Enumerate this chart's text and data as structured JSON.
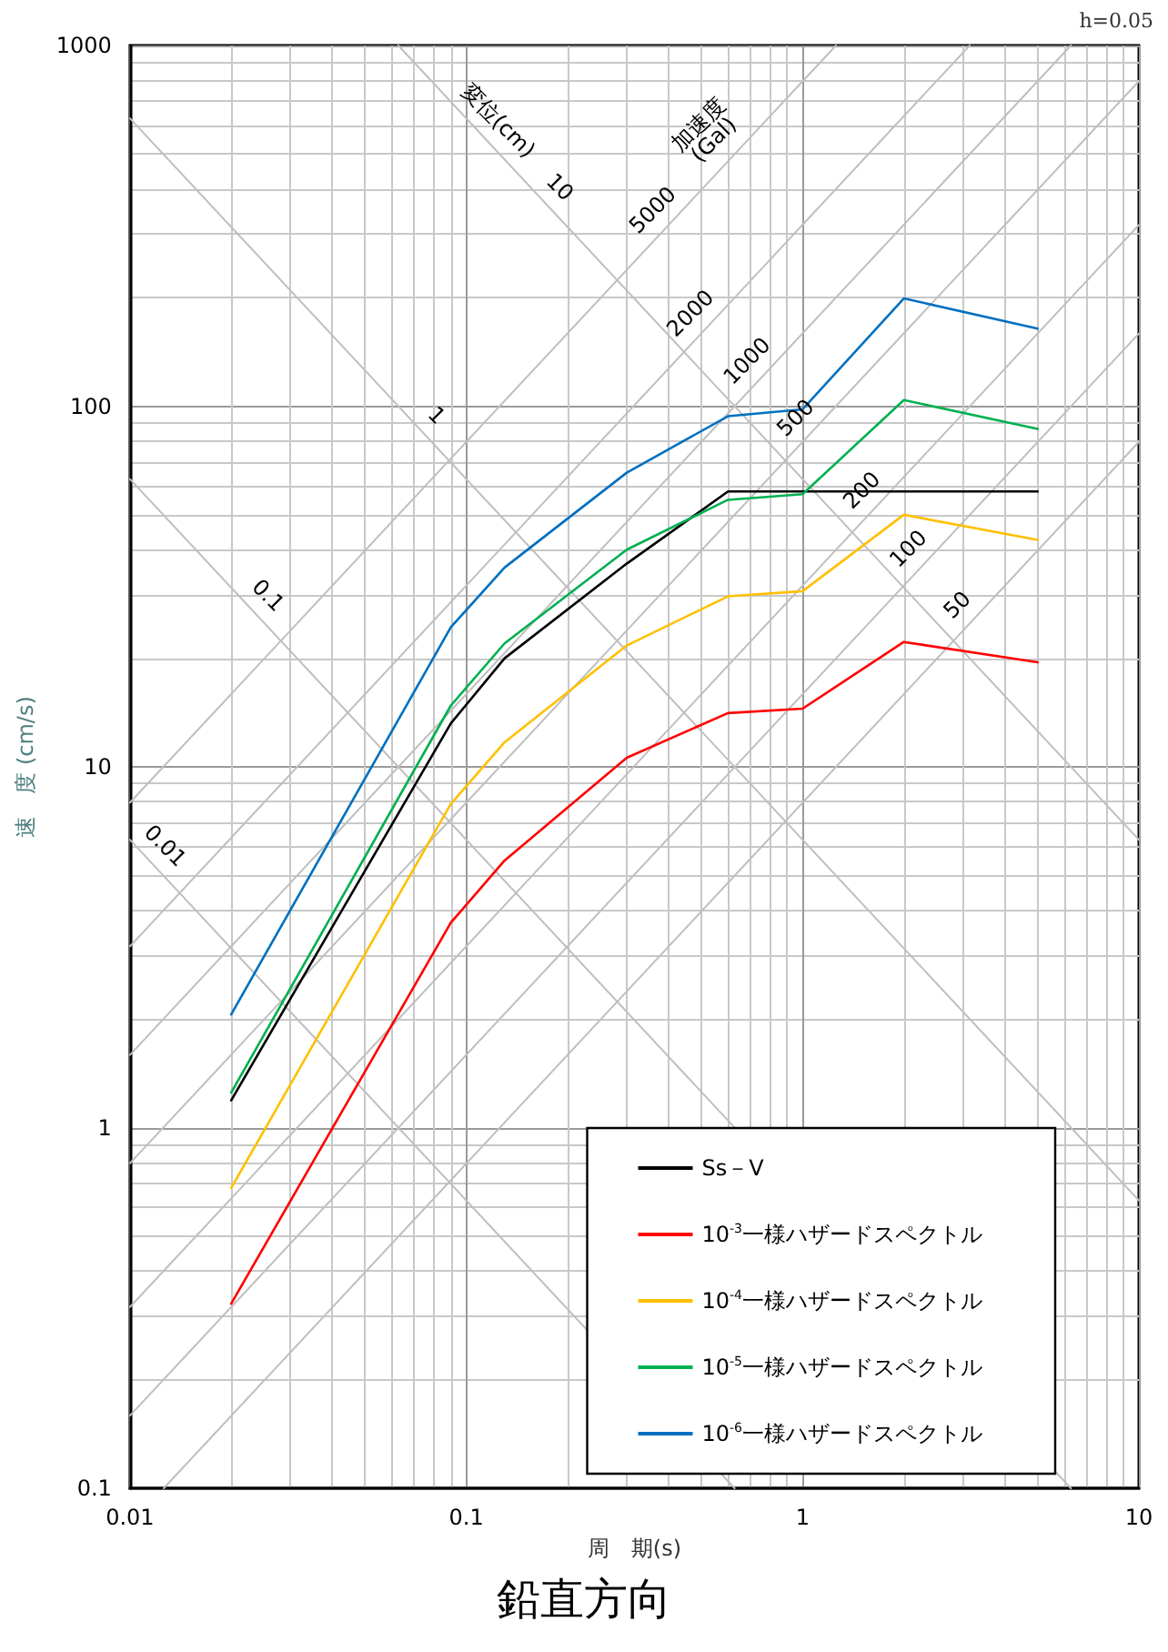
{
  "chart_data": {
    "type": "line",
    "title": "鉛直方向",
    "xlabel": "周　期(s)",
    "ylabel": "速　度 (cm/s)",
    "log": "xy",
    "grid": true,
    "legend": "bottom right",
    "marker": "none",
    "line_style": "solid",
    "xlim": [
      0.01,
      10
    ],
    "xticks": [
      0.01,
      0.1,
      1,
      10
    ],
    "ylim": [
      0.1,
      1000
    ],
    "yticks": [
      0.1,
      1,
      10,
      100,
      1000
    ],
    "x": [
      0.02,
      0.09,
      0.13,
      0.3,
      0.6,
      1,
      2,
      5
    ],
    "series": [
      {
        "x": [
          0.0628,
          10
        ],
        "values": [
          1000,
          6.28
        ],
        "color": "#bfbfbf"
      },
      {
        "x": [
          0.01,
          10
        ],
        "values": [
          628,
          0.628
        ],
        "color": "#bfbfbf"
      },
      {
        "x": [
          0.01,
          6.28
        ],
        "values": [
          62.8,
          0.1
        ],
        "color": "#bfbfbf"
      },
      {
        "x": [
          0.01,
          0.628
        ],
        "values": [
          6.28,
          0.1
        ],
        "color": "#bfbfbf"
      },
      {
        "x": [
          0.01,
          1.257
        ],
        "values": [
          7.96,
          1000
        ],
        "color": "#bfbfbf"
      },
      {
        "x": [
          0.01,
          3.14
        ],
        "values": [
          3.18,
          1000
        ],
        "color": "#bfbfbf"
      },
      {
        "x": [
          0.01,
          6.28
        ],
        "values": [
          1.59,
          1000
        ],
        "color": "#bfbfbf"
      },
      {
        "x": [
          0.01,
          10
        ],
        "values": [
          0.796,
          796
        ],
        "color": "#bfbfbf"
      },
      {
        "x": [
          0.01,
          10
        ],
        "values": [
          0.318,
          318
        ],
        "color": "#bfbfbf"
      },
      {
        "x": [
          0.01,
          10
        ],
        "values": [
          0.159,
          159
        ],
        "color": "#bfbfbf"
      },
      {
        "x": [
          0.0126,
          10
        ],
        "values": [
          0.1,
          79.6
        ],
        "color": "#bfbfbf"
      },
      {
        "name": "Ss－V",
        "color": "#000000",
        "values": [
          1.19,
          13.2,
          20,
          36.6,
          58,
          58,
          58,
          58
        ]
      },
      {
        "name": "10$^{-3}$一様ハザードスペクトル",
        "color": "#ff0000",
        "values": [
          0.325,
          3.7,
          5.5,
          10.6,
          14.1,
          14.5,
          22.2,
          19.5
        ]
      },
      {
        "name": "10$^{-4}$一様ハザードスペクトル",
        "color": "#ffc000",
        "values": [
          0.68,
          7.9,
          11.7,
          21.7,
          29.7,
          30.7,
          50,
          42.6
        ]
      },
      {
        "name": "10$^{-5}$一様ハザードスペクトル",
        "color": "#00b050",
        "values": [
          1.25,
          14.8,
          22,
          40,
          55,
          57,
          104,
          86.5
        ]
      },
      {
        "name": "10$^{-6}$一様ハザードスペクトル",
        "color": "#0070c0",
        "values": [
          2.06,
          24.4,
          35.7,
          65.4,
          93.8,
          98,
          199,
          164
        ]
      }
    ],
    "annotations": [
      "h=0.05",
      {
        "text": "変位(cm)",
        "x": 0.112,
        "y": 561
      },
      {
        "text": "10",
        "x": 0.171,
        "y": 367
      },
      {
        "text": "1",
        "x": 0.0735,
        "y": 85.5
      },
      {
        "text": "0.1",
        "x": 0.0232,
        "y": 27.1
      },
      {
        "text": "0.01",
        "x": 0.01147,
        "y": 5.48
      },
      {
        "text": "加速度\n(Gal)",
        "x": 0.615,
        "y": 489
      },
      {
        "text": "5000",
        "x": 0.398,
        "y": 317
      },
      {
        "text": "2000",
        "x": 0.515,
        "y": 164
      },
      {
        "text": "1000",
        "x": 0.759,
        "y": 121
      },
      {
        "text": "500",
        "x": 1.058,
        "y": 84.2
      },
      {
        "text": "200",
        "x": 1.665,
        "y": 53
      },
      {
        "text": "100",
        "x": 2.29,
        "y": 36.5
      },
      {
        "text": "50",
        "x": 3.2,
        "y": 25.5
      }
    ]
  }
}
